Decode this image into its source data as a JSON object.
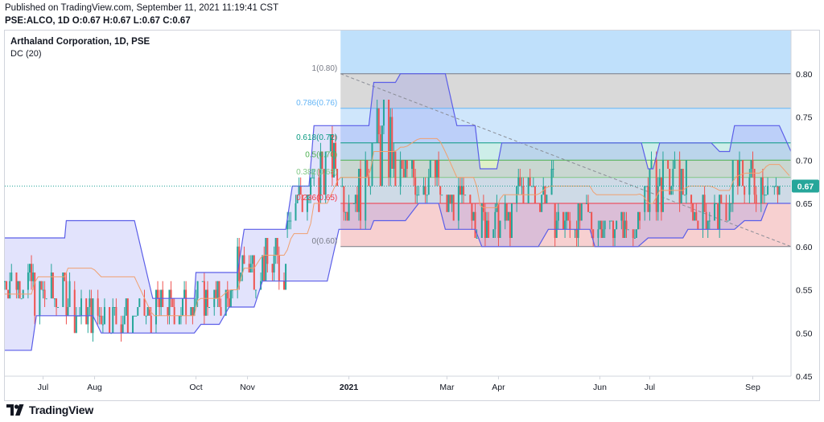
{
  "published_line": "Published on TradingView.com, September 11, 2021 11:19:41 CST",
  "ohlc_line": "PSE:ALCO, 1D O:0.67 H:0.67 L:0.67 C:0.67",
  "symbol_title": "Arthaland Corporation, 1D, PSE",
  "indicator_label": "DC (20)",
  "brand_name": "TradingView",
  "colors": {
    "bull": "#26a69a",
    "bear": "#ef5350",
    "channel_line": "#5b5ee8",
    "channel_fill": "#7b7ff0",
    "basis_line": "#f0a070",
    "price_badge": "#26a69a",
    "fib_zone_top": "#bfe0fb",
    "fib_zone_1": "#d9d9d9",
    "fib_zone_2": "#cfe6fb",
    "fib_zone_3": "#cdeee9",
    "fib_zone_4": "#dff0c8",
    "fib_zone_5": "#e6f4e3",
    "fib_zone_6": "#f7d0d0"
  },
  "chart_data": {
    "type": "candlestick",
    "symbol": "PSE:ALCO",
    "interval": "1D",
    "last_price": 0.67,
    "last_price_label": "0.67",
    "ylim": [
      0.45,
      0.85
    ],
    "y_ticks": [
      0.45,
      0.5,
      0.55,
      0.6,
      0.65,
      0.7,
      0.75,
      0.8
    ],
    "y_tick_labels": [
      "0.45",
      "0.50",
      "0.55",
      "0.60",
      "0.65",
      "0.70",
      "0.75",
      "0.80"
    ],
    "x_ticks": [
      "Jul",
      "Aug",
      "Oct",
      "Nov",
      "2021",
      "Mar",
      "Apr",
      "Jun",
      "Jul",
      "Sep"
    ],
    "x_range": [
      "2020-06-08",
      "2021-09-24"
    ],
    "x_tick_dates": [
      "2020-07-01",
      "2020-08-01",
      "2020-10-01",
      "2020-11-01",
      "2021-01-01",
      "2021-03-01",
      "2021-04-01",
      "2021-06-01",
      "2021-07-01",
      "2021-09-01"
    ],
    "donchian": {
      "name": "DC (20)",
      "upper": [
        {
          "date": "2020-06-08",
          "value": 0.61
        },
        {
          "date": "2020-07-14",
          "value": 0.61
        },
        {
          "date": "2020-07-15",
          "value": 0.63
        },
        {
          "date": "2020-08-25",
          "value": 0.63
        },
        {
          "date": "2020-09-05",
          "value": 0.54
        },
        {
          "date": "2020-09-30",
          "value": 0.54
        },
        {
          "date": "2020-10-01",
          "value": 0.57
        },
        {
          "date": "2020-10-26",
          "value": 0.57
        },
        {
          "date": "2020-10-30",
          "value": 0.62
        },
        {
          "date": "2020-11-24",
          "value": 0.62
        },
        {
          "date": "2020-11-28",
          "value": 0.67
        },
        {
          "date": "2020-12-08",
          "value": 0.67
        },
        {
          "date": "2020-12-11",
          "value": 0.74
        },
        {
          "date": "2021-01-13",
          "value": 0.74
        },
        {
          "date": "2021-01-16",
          "value": 0.79
        },
        {
          "date": "2021-01-29",
          "value": 0.79
        },
        {
          "date": "2021-02-01",
          "value": 0.8
        },
        {
          "date": "2021-02-28",
          "value": 0.8
        },
        {
          "date": "2021-03-07",
          "value": 0.74
        },
        {
          "date": "2021-03-18",
          "value": 0.74
        },
        {
          "date": "2021-03-21",
          "value": 0.69
        },
        {
          "date": "2021-03-31",
          "value": 0.69
        },
        {
          "date": "2021-04-03",
          "value": 0.72
        },
        {
          "date": "2021-06-26",
          "value": 0.72
        },
        {
          "date": "2021-06-30",
          "value": 0.69
        },
        {
          "date": "2021-07-03",
          "value": 0.69
        },
        {
          "date": "2021-07-07",
          "value": 0.72
        },
        {
          "date": "2021-08-07",
          "value": 0.72
        },
        {
          "date": "2021-08-12",
          "value": 0.71
        },
        {
          "date": "2021-08-18",
          "value": 0.71
        },
        {
          "date": "2021-08-21",
          "value": 0.74
        },
        {
          "date": "2021-09-17",
          "value": 0.74
        },
        {
          "date": "2021-09-24",
          "value": 0.71
        }
      ],
      "lower": [
        {
          "date": "2020-06-08",
          "value": 0.48
        },
        {
          "date": "2020-06-24",
          "value": 0.48
        },
        {
          "date": "2020-06-27",
          "value": 0.52
        },
        {
          "date": "2020-07-31",
          "value": 0.52
        },
        {
          "date": "2020-08-05",
          "value": 0.5
        },
        {
          "date": "2020-09-30",
          "value": 0.5
        },
        {
          "date": "2020-10-04",
          "value": 0.51
        },
        {
          "date": "2020-10-15",
          "value": 0.51
        },
        {
          "date": "2020-10-21",
          "value": 0.53
        },
        {
          "date": "2020-11-05",
          "value": 0.53
        },
        {
          "date": "2020-11-10",
          "value": 0.56
        },
        {
          "date": "2020-12-19",
          "value": 0.56
        },
        {
          "date": "2020-12-26",
          "value": 0.62
        },
        {
          "date": "2021-01-14",
          "value": 0.62
        },
        {
          "date": "2021-01-16",
          "value": 0.63
        },
        {
          "date": "2021-02-04",
          "value": 0.63
        },
        {
          "date": "2021-02-12",
          "value": 0.65
        },
        {
          "date": "2021-02-24",
          "value": 0.65
        },
        {
          "date": "2021-02-28",
          "value": 0.62
        },
        {
          "date": "2021-03-18",
          "value": 0.62
        },
        {
          "date": "2021-03-22",
          "value": 0.6
        },
        {
          "date": "2021-04-25",
          "value": 0.6
        },
        {
          "date": "2021-05-01",
          "value": 0.62
        },
        {
          "date": "2021-05-26",
          "value": 0.62
        },
        {
          "date": "2021-05-29",
          "value": 0.6
        },
        {
          "date": "2021-06-24",
          "value": 0.6
        },
        {
          "date": "2021-06-30",
          "value": 0.61
        },
        {
          "date": "2021-07-21",
          "value": 0.61
        },
        {
          "date": "2021-07-24",
          "value": 0.62
        },
        {
          "date": "2021-08-21",
          "value": 0.62
        },
        {
          "date": "2021-08-27",
          "value": 0.63
        },
        {
          "date": "2021-09-06",
          "value": 0.63
        },
        {
          "date": "2021-09-10",
          "value": 0.65
        },
        {
          "date": "2021-09-24",
          "value": 0.65
        }
      ]
    },
    "fibonacci": {
      "start_date": "2020-12-27",
      "end_date": "2021-09-24",
      "levels": [
        {
          "ratio": 1,
          "price": 0.8,
          "label": "1(0.80)",
          "color": "#787b86"
        },
        {
          "ratio": 0.786,
          "price": 0.76,
          "label": "0.786(0.76)",
          "color": "#64b5f6"
        },
        {
          "ratio": 0.618,
          "price": 0.72,
          "label": "0.618(0.72)",
          "color": "#089981"
        },
        {
          "ratio": 0.5,
          "price": 0.7,
          "label": "0.5(0.70)",
          "color": "#4caf50"
        },
        {
          "ratio": 0.382,
          "price": 0.68,
          "label": "0.382(0.68)",
          "color": "#81c784"
        },
        {
          "ratio": 0.236,
          "price": 0.65,
          "label": "0.236(0.65)",
          "color": "#f23645"
        },
        {
          "ratio": 0,
          "price": 0.6,
          "label": "0(0.60)",
          "color": "#787b86"
        }
      ],
      "trend_line": {
        "from": {
          "date": "2020-12-27",
          "price": 0.8
        },
        "to": {
          "date": "2021-09-24",
          "price": 0.6
        }
      }
    },
    "candle_segments": [
      {
        "from": "2020-06-08",
        "to": "2020-06-26",
        "lo": 0.54,
        "hi": 0.58
      },
      {
        "from": "2020-06-26",
        "to": "2020-07-20",
        "lo": 0.52,
        "hi": 0.57
      },
      {
        "from": "2020-07-20",
        "to": "2020-08-10",
        "lo": 0.5,
        "hi": 0.55
      },
      {
        "from": "2020-08-10",
        "to": "2020-09-05",
        "lo": 0.5,
        "hi": 0.54
      },
      {
        "from": "2020-09-05",
        "to": "2020-09-28",
        "lo": 0.51,
        "hi": 0.55
      },
      {
        "from": "2020-09-28",
        "to": "2020-10-25",
        "lo": 0.52,
        "hi": 0.56
      },
      {
        "from": "2020-10-25",
        "to": "2020-11-25",
        "lo": 0.55,
        "hi": 0.61
      },
      {
        "from": "2020-11-25",
        "to": "2020-12-15",
        "lo": 0.62,
        "hi": 0.7
      },
      {
        "from": "2020-12-15",
        "to": "2020-12-27",
        "lo": 0.66,
        "hi": 0.73
      },
      {
        "from": "2020-12-27",
        "to": "2021-01-12",
        "lo": 0.63,
        "hi": 0.7
      },
      {
        "from": "2021-01-12",
        "to": "2021-01-28",
        "lo": 0.66,
        "hi": 0.77
      },
      {
        "from": "2021-01-28",
        "to": "2021-02-25",
        "lo": 0.65,
        "hi": 0.71
      },
      {
        "from": "2021-02-25",
        "to": "2021-03-18",
        "lo": 0.63,
        "hi": 0.67
      },
      {
        "from": "2021-03-18",
        "to": "2021-04-10",
        "lo": 0.61,
        "hi": 0.65
      },
      {
        "from": "2021-04-10",
        "to": "2021-05-05",
        "lo": 0.64,
        "hi": 0.69
      },
      {
        "from": "2021-05-05",
        "to": "2021-06-01",
        "lo": 0.61,
        "hi": 0.65
      },
      {
        "from": "2021-06-01",
        "to": "2021-06-28",
        "lo": 0.61,
        "hi": 0.64
      },
      {
        "from": "2021-06-28",
        "to": "2021-07-25",
        "lo": 0.64,
        "hi": 0.7
      },
      {
        "from": "2021-07-25",
        "to": "2021-08-20",
        "lo": 0.62,
        "hi": 0.66
      },
      {
        "from": "2021-08-20",
        "to": "2021-09-10",
        "lo": 0.65,
        "hi": 0.71
      },
      {
        "from": "2021-09-10",
        "to": "2021-09-18",
        "lo": 0.66,
        "hi": 0.67
      }
    ]
  }
}
